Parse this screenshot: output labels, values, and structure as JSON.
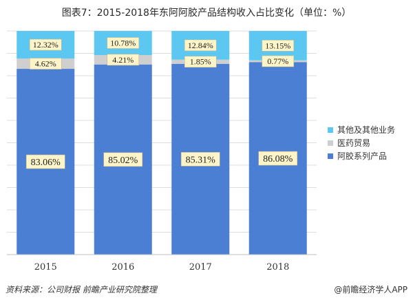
{
  "title": "图表7：2015-2018年东阿阿胶产品结构收入占比变化（单位：%）",
  "footer": {
    "source": "资料来源：公司财报 前瞻产业研究院整理",
    "brand": "@前瞻经济学人APP"
  },
  "colors": {
    "grid": "#dcdcdc",
    "label_fill": "#fdf5c9",
    "label_stroke": "#c9b98a"
  },
  "chart_data": {
    "type": "bar",
    "stacked": true,
    "title": "图表7：2015-2018年东阿阿胶产品结构收入占比变化（单位：%）",
    "categories": [
      "2015",
      "2016",
      "2017",
      "2018"
    ],
    "ylim": [
      0,
      100
    ],
    "grid": true,
    "legend_position": "right",
    "series": [
      {
        "name": "阿胶系列产品",
        "color": "#4a7fd4",
        "values": [
          83.06,
          85.02,
          85.31,
          86.08
        ],
        "labels": [
          "83.06%",
          "85.02%",
          "85.31%",
          "86.08%"
        ]
      },
      {
        "name": "医药贸易",
        "color": "#cfcfcf",
        "values": [
          4.62,
          4.21,
          1.85,
          0.77
        ],
        "labels": [
          "4.62%",
          "4.21%",
          "1.85%",
          "0.77%"
        ]
      },
      {
        "name": "其他及其他业务",
        "color": "#5cc8f2",
        "values": [
          12.32,
          10.78,
          12.84,
          13.15
        ],
        "labels": [
          "12.32%",
          "10.78%",
          "12.84%",
          "13.15%"
        ]
      }
    ]
  }
}
